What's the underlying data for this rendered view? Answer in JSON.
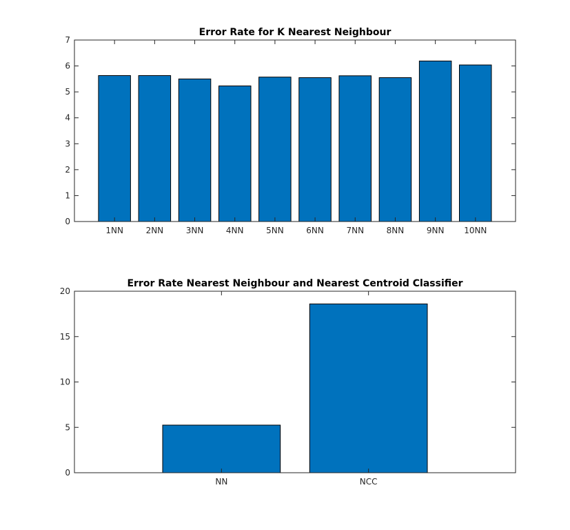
{
  "colors": {
    "bar_fill": "#0072BD",
    "bar_edge": "#000000",
    "axis": "#262626"
  },
  "chart_data": [
    {
      "type": "bar",
      "title": "Error Rate for K Nearest Neighbour",
      "xlabel": "",
      "ylabel": "",
      "categories": [
        "1NN",
        "2NN",
        "3NN",
        "4NN",
        "5NN",
        "6NN",
        "7NN",
        "8NN",
        "9NN",
        "10NN"
      ],
      "values": [
        5.63,
        5.63,
        5.5,
        5.23,
        5.57,
        5.55,
        5.62,
        5.55,
        6.19,
        6.04
      ],
      "ylim": [
        0,
        7
      ],
      "yticks": [
        0,
        1,
        2,
        3,
        4,
        5,
        6,
        7
      ],
      "grid": false,
      "legend": "none"
    },
    {
      "type": "bar",
      "title": "Error Rate Nearest Neighbour and Nearest Centroid Classifier",
      "xlabel": "",
      "ylabel": "",
      "categories": [
        "NN",
        "NCC"
      ],
      "values": [
        5.25,
        18.6
      ],
      "ylim": [
        0,
        20
      ],
      "yticks": [
        0,
        5,
        10,
        15,
        20
      ],
      "grid": false,
      "legend": "none"
    }
  ]
}
